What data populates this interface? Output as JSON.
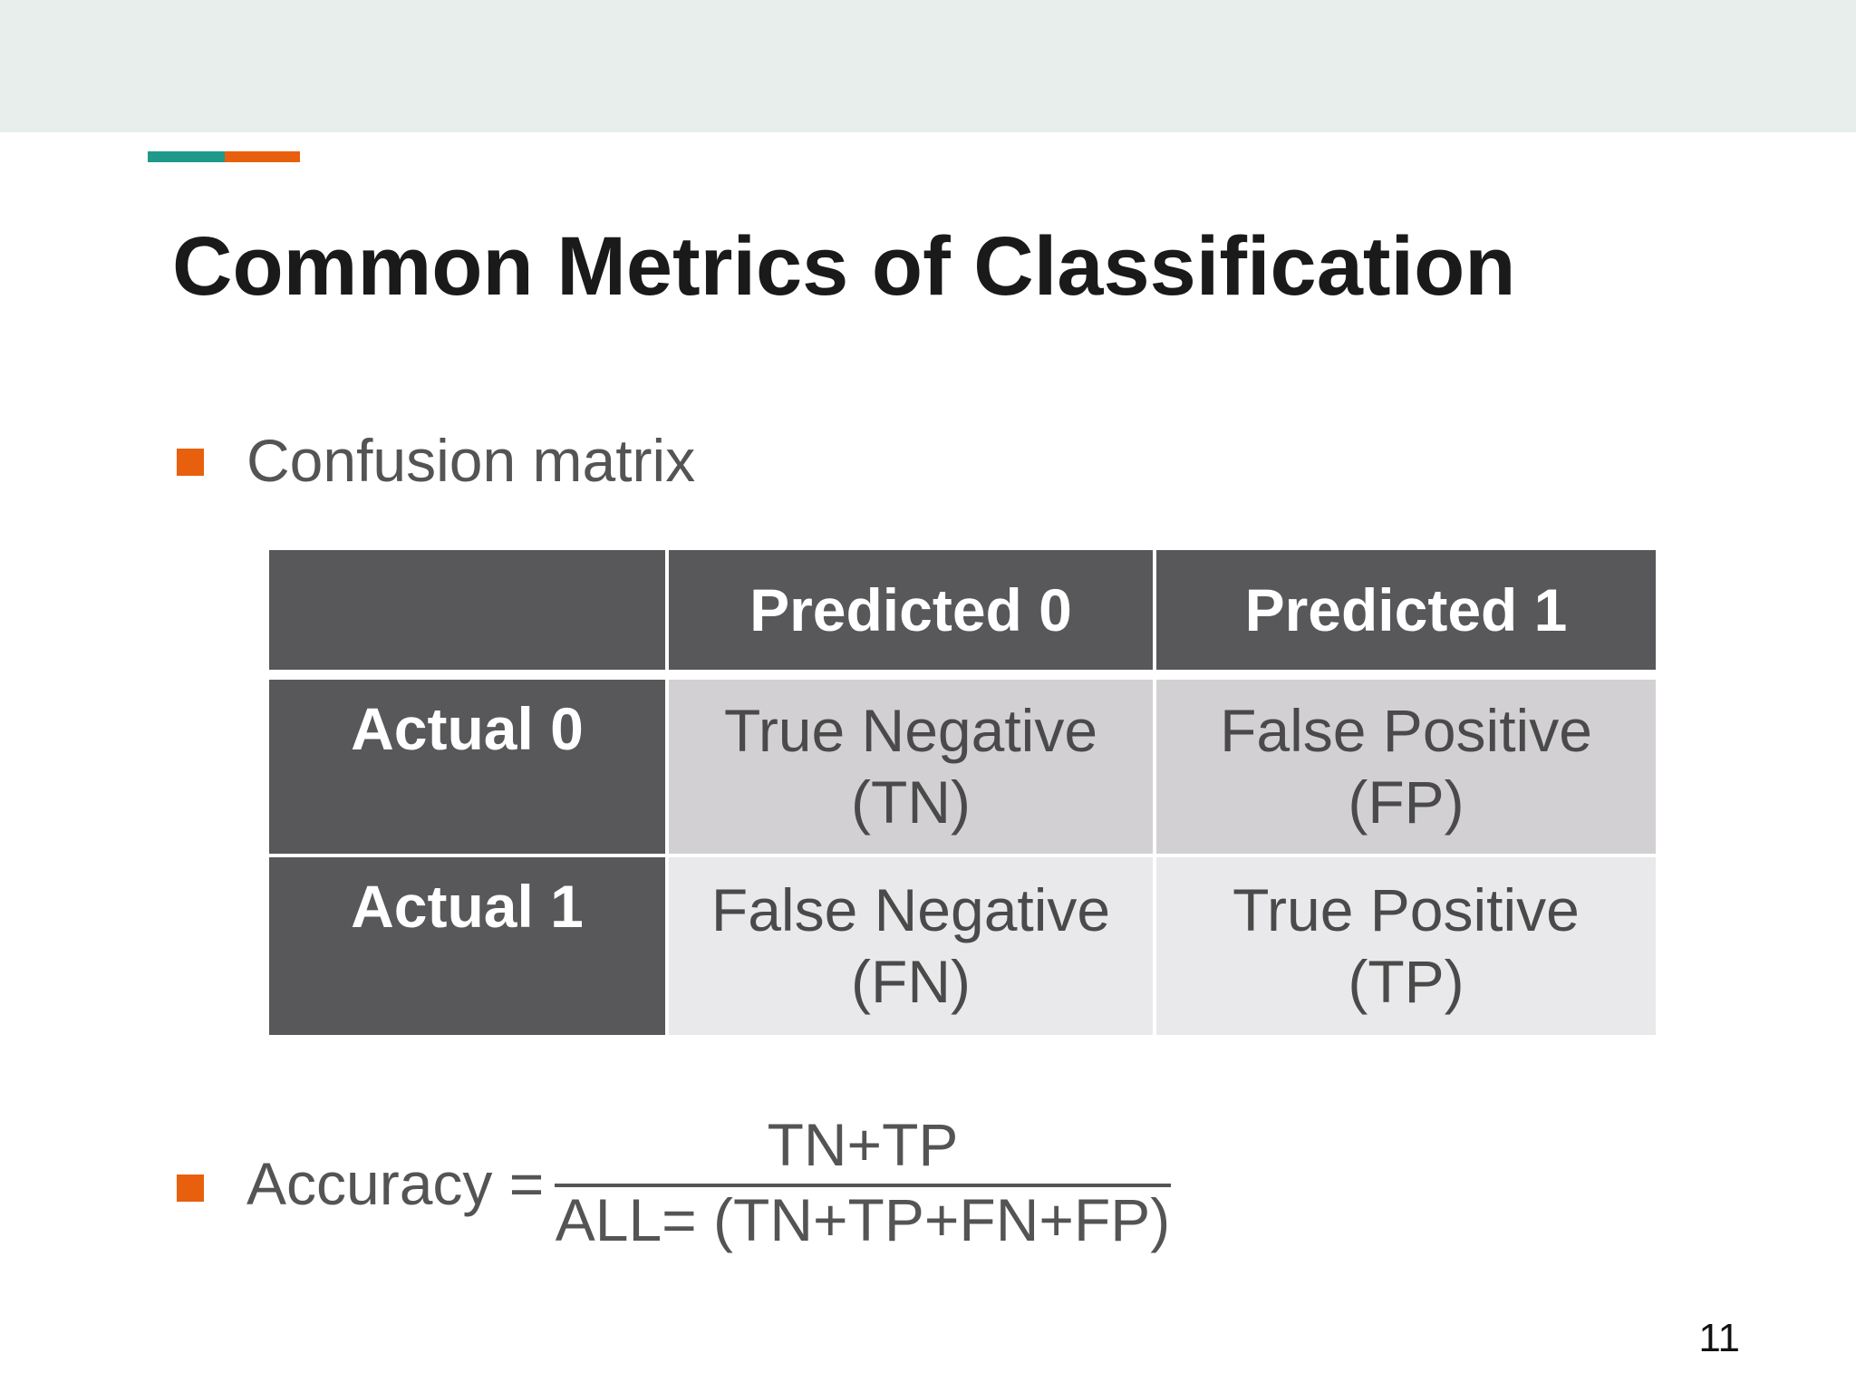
{
  "colors": {
    "accent_teal": "#1f9a8a",
    "accent_orange": "#e8600e",
    "header_fill": "#58575a",
    "cell_row0": "#d2d0d3",
    "cell_row1": "#e9e8ea"
  },
  "slide": {
    "title": "Common Metrics of Classification",
    "page_number": "11"
  },
  "bullets": [
    {
      "text": "Confusion matrix"
    }
  ],
  "matrix": {
    "corner": "",
    "col_headers": [
      "Predicted 0",
      "Predicted 1"
    ],
    "rows": [
      {
        "label": "Actual 0",
        "cells": [
          {
            "line1": "True Negative",
            "line2": "(TN)"
          },
          {
            "line1": "False Positive",
            "line2": "(FP)"
          }
        ]
      },
      {
        "label": "Actual 1",
        "cells": [
          {
            "line1": "False Negative",
            "line2": "(FN)"
          },
          {
            "line1": "True Positive",
            "line2": "(TP)"
          }
        ]
      }
    ]
  },
  "formula": {
    "label": "Accuracy =",
    "numerator": "TN+TP",
    "denominator": "ALL= (TN+TP+FN+FP)"
  }
}
